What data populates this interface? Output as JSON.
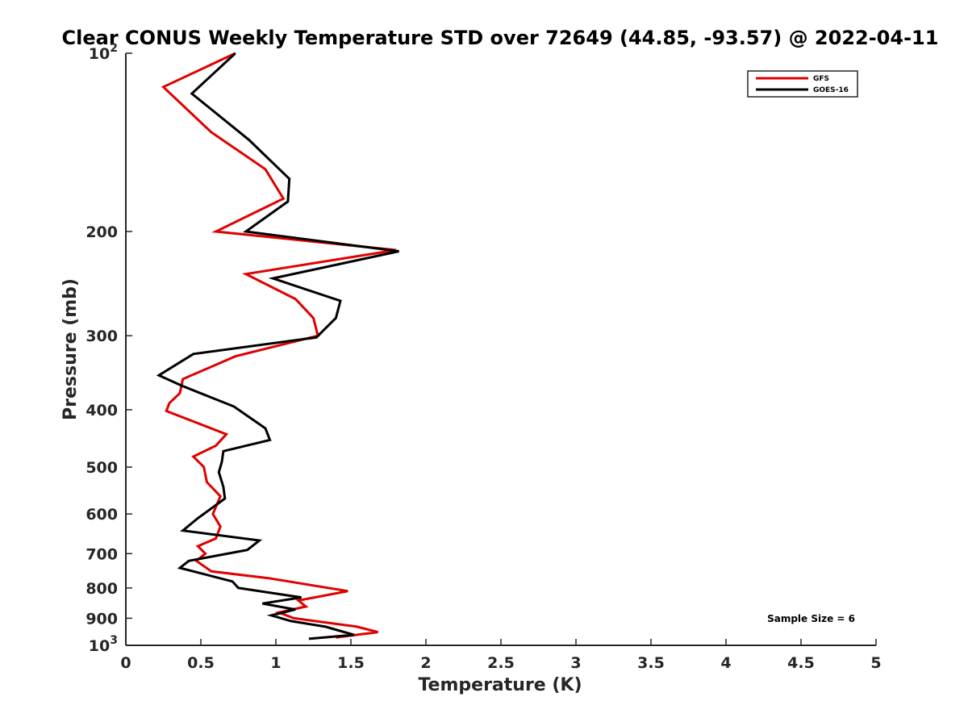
{
  "chart_data": {
    "type": "line",
    "title": "Clear CONUS Weekly Temperature STD over 72649 (44.85, -93.57) @ 2022-04-11",
    "xlabel": "Temperature (K)",
    "ylabel": "Pressure (mb)",
    "xlim": [
      0,
      5
    ],
    "ylim": [
      100,
      1000
    ],
    "y_scale": "log",
    "y_reversed": true,
    "grid": false,
    "legend_position": "top-right",
    "x_ticks": [
      "0",
      "0.5",
      "1",
      "1.5",
      "2",
      "2.5",
      "3",
      "3.5",
      "4",
      "4.5",
      "5"
    ],
    "x_tick_values": [
      0,
      0.5,
      1,
      1.5,
      2,
      2.5,
      3,
      3.5,
      4,
      4.5,
      5
    ],
    "y_ticks": [
      {
        "value": 100,
        "base": "10",
        "exp": "2"
      },
      {
        "value": 200,
        "label": "200"
      },
      {
        "value": 300,
        "label": "300"
      },
      {
        "value": 400,
        "label": "400"
      },
      {
        "value": 500,
        "label": "500"
      },
      {
        "value": 600,
        "label": "600"
      },
      {
        "value": 700,
        "label": "700"
      },
      {
        "value": 800,
        "label": "800"
      },
      {
        "value": 900,
        "label": "900"
      },
      {
        "value": 1000,
        "base": "10",
        "exp": "3"
      }
    ],
    "annotation": "Sample Size = 6",
    "series": [
      {
        "name": "GFS",
        "color": "#e00000",
        "points": [
          [
            0.73,
            100
          ],
          [
            0.25,
            114
          ],
          [
            0.57,
            136
          ],
          [
            0.93,
            157
          ],
          [
            1.05,
            176
          ],
          [
            0.6,
            200
          ],
          [
            1.8,
            215
          ],
          [
            0.8,
            236
          ],
          [
            1.13,
            260
          ],
          [
            1.25,
            280
          ],
          [
            1.28,
            300
          ],
          [
            0.73,
            325
          ],
          [
            0.38,
            355
          ],
          [
            0.36,
            375
          ],
          [
            0.29,
            390
          ],
          [
            0.27,
            402
          ],
          [
            0.67,
            440
          ],
          [
            0.6,
            460
          ],
          [
            0.45,
            480
          ],
          [
            0.52,
            500
          ],
          [
            0.54,
            530
          ],
          [
            0.63,
            560
          ],
          [
            0.58,
            600
          ],
          [
            0.63,
            630
          ],
          [
            0.6,
            660
          ],
          [
            0.48,
            680
          ],
          [
            0.53,
            700
          ],
          [
            0.47,
            720
          ],
          [
            0.57,
            750
          ],
          [
            0.95,
            770
          ],
          [
            1.48,
            810
          ],
          [
            1.15,
            840
          ],
          [
            1.2,
            860
          ],
          [
            1.02,
            880
          ],
          [
            1.12,
            900
          ],
          [
            1.54,
            930
          ],
          [
            1.68,
            950
          ],
          [
            1.4,
            970
          ]
        ]
      },
      {
        "name": "GOES-16",
        "color": "#000000",
        "points": [
          [
            0.73,
            100
          ],
          [
            0.44,
            117
          ],
          [
            0.82,
            140
          ],
          [
            1.09,
            163
          ],
          [
            1.08,
            178
          ],
          [
            0.8,
            200
          ],
          [
            1.82,
            216
          ],
          [
            0.98,
            240
          ],
          [
            1.43,
            262
          ],
          [
            1.4,
            280
          ],
          [
            1.27,
            302
          ],
          [
            0.45,
            322
          ],
          [
            0.22,
            350
          ],
          [
            0.38,
            365
          ],
          [
            0.72,
            395
          ],
          [
            0.93,
            430
          ],
          [
            0.96,
            450
          ],
          [
            0.65,
            470
          ],
          [
            0.64,
            490
          ],
          [
            0.62,
            510
          ],
          [
            0.65,
            540
          ],
          [
            0.66,
            565
          ],
          [
            0.48,
            610
          ],
          [
            0.38,
            640
          ],
          [
            0.89,
            665
          ],
          [
            0.81,
            690
          ],
          [
            0.42,
            720
          ],
          [
            0.36,
            740
          ],
          [
            0.71,
            780
          ],
          [
            0.75,
            800
          ],
          [
            1.17,
            830
          ],
          [
            0.91,
            850
          ],
          [
            1.13,
            870
          ],
          [
            0.97,
            890
          ],
          [
            1.1,
            910
          ],
          [
            1.33,
            930
          ],
          [
            1.52,
            960
          ],
          [
            1.22,
            975
          ]
        ]
      }
    ]
  }
}
